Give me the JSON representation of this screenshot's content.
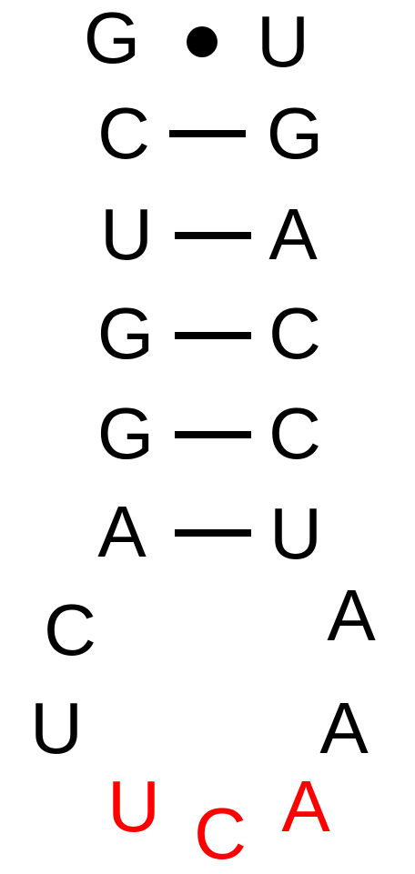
{
  "structure": {
    "stem": [
      {
        "left": "G",
        "right": "U",
        "bond": "wobble"
      },
      {
        "left": "C",
        "right": "G",
        "bond": "watson-crick"
      },
      {
        "left": "U",
        "right": "A",
        "bond": "watson-crick"
      },
      {
        "left": "G",
        "right": "C",
        "bond": "watson-crick"
      },
      {
        "left": "G",
        "right": "C",
        "bond": "watson-crick"
      },
      {
        "left": "A",
        "right": "U",
        "bond": "watson-crick"
      }
    ],
    "loop": {
      "left": [
        "C",
        "U"
      ],
      "right": [
        "A",
        "A"
      ],
      "highlighted": [
        "U",
        "C",
        "A"
      ]
    },
    "colors": {
      "default": "#000000",
      "highlight": "#ff0000"
    }
  }
}
